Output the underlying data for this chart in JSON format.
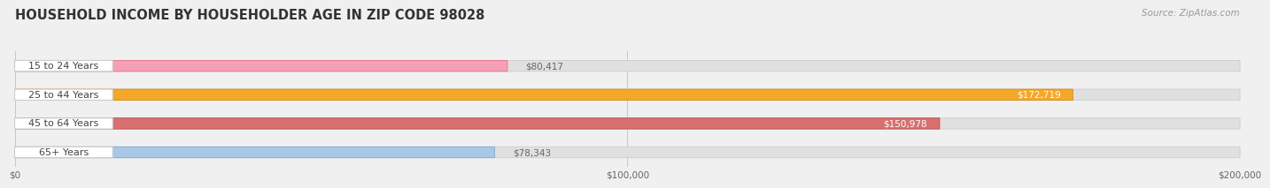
{
  "title": "HOUSEHOLD INCOME BY HOUSEHOLDER AGE IN ZIP CODE 98028",
  "source": "Source: ZipAtlas.com",
  "categories": [
    "15 to 24 Years",
    "25 to 44 Years",
    "45 to 64 Years",
    "65+ Years"
  ],
  "values": [
    80417,
    172719,
    150978,
    78343
  ],
  "bar_colors": [
    "#f5a0b5",
    "#f5a828",
    "#d97070",
    "#a8c8e8"
  ],
  "bar_edge_colors": [
    "#e07090",
    "#d4861a",
    "#b85050",
    "#7aaac8"
  ],
  "background_color": "#f0f0f0",
  "bar_bg_color": "#e0e0e0",
  "bar_bg_edge_color": "#cccccc",
  "label_color": "#444444",
  "value_color_inside": "#ffffff",
  "value_color_outside": "#666666",
  "xlim": [
    0,
    200000
  ],
  "xticks": [
    0,
    100000,
    200000
  ],
  "xtick_labels": [
    "$0",
    "$100,000",
    "$200,000"
  ],
  "title_fontsize": 10.5,
  "source_fontsize": 7.5,
  "label_fontsize": 8,
  "value_fontsize": 7.5,
  "bar_height": 0.38,
  "figsize": [
    14.06,
    2.33
  ]
}
